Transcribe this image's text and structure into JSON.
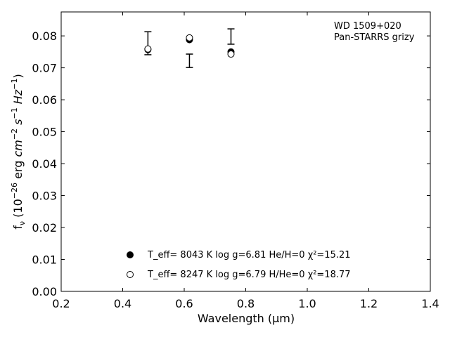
{
  "chart_data": {
    "type": "scatter",
    "xlabel": "Wavelength (μm)",
    "ylabel": "f_ν (10^-26 erg cm^-2 s^-1 Hz^-1)",
    "xlim": [
      0.2,
      1.4
    ],
    "ylim": [
      0.0,
      0.0875
    ],
    "x_ticks": [
      "0.2",
      "0.4",
      "0.6",
      "0.8",
      "1.0",
      "1.2",
      "1.4"
    ],
    "y_ticks": [
      "0.00",
      "0.01",
      "0.02",
      "0.03",
      "0.04",
      "0.05",
      "0.06",
      "0.07",
      "0.08"
    ],
    "annotation": [
      "WD 1509+020",
      "Pan-STARRS grizy"
    ],
    "grid": false,
    "legend_position": "lower-center",
    "observed": {
      "x": [
        0.482,
        0.617,
        0.752
      ],
      "y": [
        0.0777,
        0.0722,
        0.0798
      ],
      "yerr": [
        0.0036,
        0.0021,
        0.0024
      ]
    },
    "series": [
      {
        "marker": "filled-circle",
        "legend_text": "T_eff=  8043 K  log g=6.81  He/H=0  χ²=15.21",
        "x": [
          0.482,
          0.617,
          0.752
        ],
        "y": [
          0.0757,
          0.0788,
          0.075
        ]
      },
      {
        "marker": "open-circle",
        "legend_text": "T_eff=  8247 K  log g=6.79  H/He=0  χ²=18.77",
        "x": [
          0.482,
          0.617,
          0.752
        ],
        "y": [
          0.0759,
          0.0794,
          0.0743
        ]
      }
    ]
  }
}
